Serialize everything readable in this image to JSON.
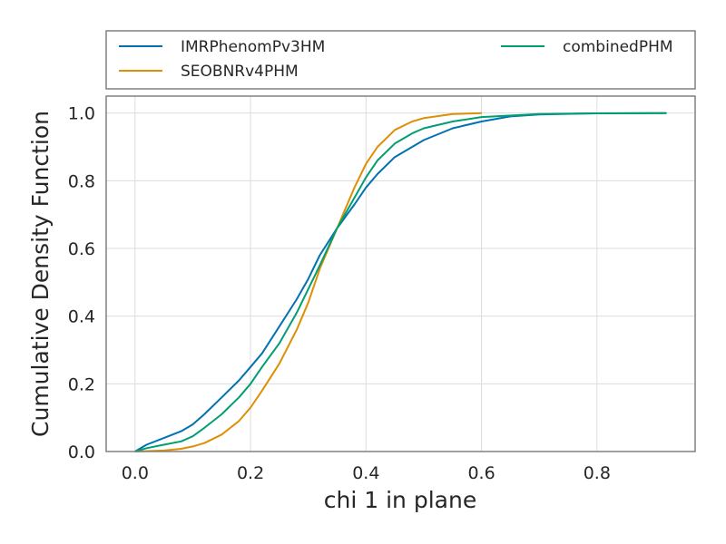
{
  "chart_data": {
    "type": "line",
    "title": "",
    "xlabel": "chi 1 in plane",
    "ylabel": "Cumulative Density Function",
    "xlim": [
      -0.05,
      0.97
    ],
    "ylim": [
      0.0,
      1.05
    ],
    "xticks": [
      0.0,
      0.2,
      0.4,
      0.6,
      0.8
    ],
    "yticks": [
      0.0,
      0.2,
      0.4,
      0.6,
      0.8,
      1.0
    ],
    "xtick_labels": [
      "0.0",
      "0.2",
      "0.4",
      "0.6",
      "0.8"
    ],
    "ytick_labels": [
      "0.0",
      "0.2",
      "0.4",
      "0.6",
      "0.8",
      "1.0"
    ],
    "grid": true,
    "legend_position": "above plot, two columns",
    "series": [
      {
        "name": "IMRPhenomPv3HM",
        "color": "#0072b2",
        "x": [
          0.0,
          0.02,
          0.05,
          0.08,
          0.1,
          0.12,
          0.15,
          0.18,
          0.2,
          0.22,
          0.25,
          0.28,
          0.3,
          0.32,
          0.35,
          0.38,
          0.4,
          0.42,
          0.45,
          0.5,
          0.55,
          0.6,
          0.65,
          0.7,
          0.8,
          0.92
        ],
        "y": [
          0.0,
          0.02,
          0.04,
          0.06,
          0.08,
          0.11,
          0.16,
          0.21,
          0.25,
          0.29,
          0.37,
          0.45,
          0.51,
          0.58,
          0.66,
          0.73,
          0.78,
          0.82,
          0.87,
          0.92,
          0.955,
          0.975,
          0.99,
          0.996,
          0.999,
          1.0
        ]
      },
      {
        "name": "SEOBNRv4PHM",
        "color": "#de8f05",
        "x": [
          0.0,
          0.05,
          0.08,
          0.1,
          0.12,
          0.15,
          0.18,
          0.2,
          0.22,
          0.25,
          0.28,
          0.3,
          0.32,
          0.35,
          0.38,
          0.4,
          0.42,
          0.45,
          0.48,
          0.5,
          0.55,
          0.6
        ],
        "y": [
          0.0,
          0.003,
          0.008,
          0.015,
          0.025,
          0.05,
          0.09,
          0.13,
          0.18,
          0.26,
          0.36,
          0.44,
          0.54,
          0.66,
          0.78,
          0.85,
          0.9,
          0.95,
          0.975,
          0.985,
          0.997,
          1.0
        ]
      },
      {
        "name": "combinedPHM",
        "color": "#029e73",
        "x": [
          0.0,
          0.02,
          0.05,
          0.08,
          0.1,
          0.12,
          0.15,
          0.18,
          0.2,
          0.22,
          0.25,
          0.28,
          0.3,
          0.32,
          0.35,
          0.38,
          0.4,
          0.42,
          0.45,
          0.48,
          0.5,
          0.55,
          0.6,
          0.7,
          0.8,
          0.92
        ],
        "y": [
          0.0,
          0.01,
          0.02,
          0.03,
          0.045,
          0.07,
          0.11,
          0.16,
          0.2,
          0.25,
          0.32,
          0.41,
          0.48,
          0.55,
          0.66,
          0.75,
          0.81,
          0.86,
          0.91,
          0.94,
          0.955,
          0.975,
          0.988,
          0.997,
          0.999,
          1.0
        ]
      }
    ]
  }
}
